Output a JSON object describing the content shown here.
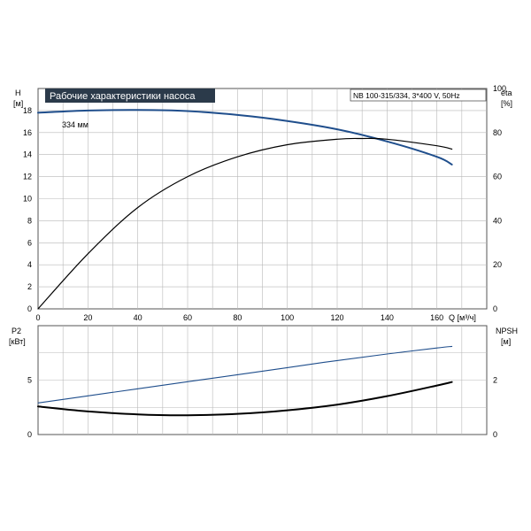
{
  "chart_data": [
    {
      "type": "line",
      "title": "Рабочие характеристики насоса",
      "subtitle": "NB 100-315/334, 3*400 V, 50Hz",
      "xlabel": "Q [м³/ч]",
      "ylabel_left": "H",
      "ylabel_left_unit": "[м]",
      "ylabel_right": "eta",
      "ylabel_right_unit": "[%]",
      "xlim": [
        0,
        180
      ],
      "ylim_left": [
        0,
        20
      ],
      "ylim_right": [
        0,
        100
      ],
      "x_ticks": [
        0,
        20,
        40,
        60,
        80,
        100,
        120,
        140,
        160
      ],
      "y_ticks_left": [
        0,
        2,
        4,
        6,
        8,
        10,
        12,
        14,
        16,
        18
      ],
      "y_ticks_right": [
        0,
        20,
        40,
        60,
        80,
        100
      ],
      "grid": true,
      "annotations": [
        {
          "text": "334 мм",
          "x": 13,
          "y": 18.3
        }
      ],
      "series": [
        {
          "axis": "left",
          "color": "#1f4e8c",
          "x": [
            0,
            20,
            40,
            60,
            80,
            100,
            120,
            140,
            160,
            166
          ],
          "y": [
            17.8,
            18.0,
            18.05,
            17.95,
            17.6,
            17.05,
            16.3,
            15.2,
            13.8,
            13.1
          ]
        },
        {
          "axis": "right",
          "color": "#000000",
          "x": [
            0,
            20,
            40,
            60,
            80,
            100,
            120,
            130,
            140,
            160,
            166
          ],
          "y": [
            0,
            25,
            46,
            60,
            69,
            74.5,
            77,
            77.3,
            77,
            74,
            72.5
          ]
        }
      ]
    },
    {
      "type": "line",
      "ylabel_left": "P2",
      "ylabel_left_unit": "[кВт]",
      "ylabel_right": "NPSH",
      "ylabel_right_unit": "[м]",
      "xlim": [
        0,
        180
      ],
      "ylim_left": [
        0,
        10
      ],
      "ylim_right": [
        0,
        4
      ],
      "y_ticks_left": [
        0,
        5
      ],
      "y_ticks_right": [
        0,
        2
      ],
      "grid": true,
      "series": [
        {
          "axis": "left",
          "color": "#1f4e8c",
          "x": [
            0,
            20,
            40,
            60,
            80,
            100,
            120,
            140,
            160,
            166
          ],
          "y": [
            2.9,
            3.55,
            4.2,
            4.85,
            5.5,
            6.15,
            6.8,
            7.4,
            7.95,
            8.1
          ]
        },
        {
          "axis": "right",
          "color": "#000000",
          "x": [
            0,
            20,
            40,
            60,
            80,
            100,
            120,
            140,
            160,
            166
          ],
          "y": [
            1.03,
            0.85,
            0.74,
            0.71,
            0.76,
            0.89,
            1.1,
            1.41,
            1.8,
            1.93
          ]
        }
      ]
    }
  ],
  "colors": {
    "title_box_bg": "#2b3a4a",
    "title_box_text": "#ffffff",
    "grid": "#b8b8b8",
    "frame": "#555555"
  }
}
